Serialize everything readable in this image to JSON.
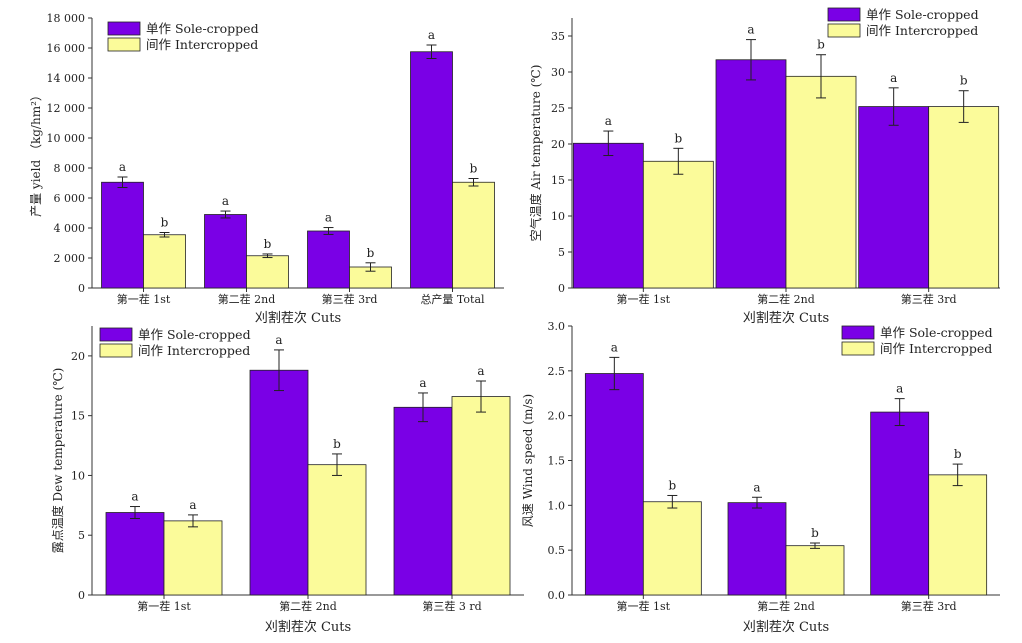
{
  "colors": {
    "sole": "#7a00e6",
    "inter": "#fbfb9a",
    "axis": "#333333",
    "text": "#222222"
  },
  "chart_data": [
    {
      "id": "yield",
      "type": "bar",
      "categories": [
        "第一茬 1st",
        "第二茬 2nd",
        "第三茬 3rd",
        "总产量 Total"
      ],
      "xlabel": "刈割茬次 Cuts",
      "ylabel": "产量 yield （kg/hm²）",
      "ylim": [
        0,
        18000
      ],
      "yticks": [
        0,
        2000,
        4000,
        6000,
        8000,
        10000,
        12000,
        14000,
        16000,
        18000
      ],
      "ytick_labels": [
        "0",
        "2 000",
        "4 000",
        "6 000",
        "8 000",
        "10 000",
        "12 000",
        "14 000",
        "16 000",
        "18 000"
      ],
      "legend": "top-left",
      "series": [
        {
          "name": "单作 Sole-cropped",
          "values": [
            7050,
            4900,
            3800,
            15750
          ],
          "errors": [
            350,
            230,
            230,
            450
          ],
          "sig": [
            "a",
            "a",
            "a",
            "a"
          ]
        },
        {
          "name": "间作 Intercropped",
          "values": [
            3550,
            2150,
            1400,
            7050
          ],
          "errors": [
            150,
            120,
            280,
            250
          ],
          "sig": [
            "b",
            "b",
            "b",
            "b"
          ]
        }
      ]
    },
    {
      "id": "air",
      "type": "bar",
      "categories": [
        "第一茬 1st",
        "第二茬 2nd",
        "第三茬 3rd"
      ],
      "xlabel": "刈割茬次  Cuts",
      "ylabel": "空气温度   Air temperature (℃)",
      "ylim": [
        0,
        37.5
      ],
      "yticks": [
        0,
        5,
        10,
        15,
        20,
        25,
        30,
        35
      ],
      "ytick_labels": [
        "0",
        "5",
        "10",
        "15",
        "20",
        "25",
        "30",
        "35"
      ],
      "legend": "top-right",
      "series": [
        {
          "name": "单作 Sole-cropped",
          "values": [
            20.1,
            31.7,
            25.2
          ],
          "errors": [
            1.7,
            2.8,
            2.6
          ],
          "sig": [
            "a",
            "a",
            "a"
          ]
        },
        {
          "name": "间作 Intercropped",
          "values": [
            17.6,
            29.4,
            25.2
          ],
          "errors": [
            1.8,
            3.0,
            2.2
          ],
          "sig": [
            "b",
            "b",
            "b"
          ]
        }
      ]
    },
    {
      "id": "dew",
      "type": "bar",
      "categories": [
        "第一茬 1st",
        "第二茬 2nd",
        "第三茬 3 rd"
      ],
      "xlabel": "刈割茬次  Cuts",
      "ylabel": "露点温度  Dew temperature (℃)",
      "ylim": [
        0,
        22.5
      ],
      "yticks": [
        0,
        5,
        10,
        15,
        20
      ],
      "ytick_labels": [
        "0",
        "5",
        "10",
        "15",
        "20"
      ],
      "legend": "top-left",
      "series": [
        {
          "name": "单作 Sole-cropped",
          "values": [
            6.9,
            18.8,
            15.7
          ],
          "errors": [
            0.5,
            1.7,
            1.2
          ],
          "sig": [
            "a",
            "a",
            "a"
          ]
        },
        {
          "name": "间作 Intercropped",
          "values": [
            6.2,
            10.9,
            16.6
          ],
          "errors": [
            0.5,
            0.9,
            1.3
          ],
          "sig": [
            "a",
            "b",
            "a"
          ]
        }
      ]
    },
    {
      "id": "wind",
      "type": "bar",
      "categories": [
        "第一茬 1st",
        "第二茬 2nd",
        "第三茬 3rd"
      ],
      "xlabel": "刈割茬次  Cuts",
      "ylabel": "风速   Wind speed (m/s)",
      "ylim": [
        0,
        3.0
      ],
      "yticks": [
        0,
        0.5,
        1.0,
        1.5,
        2.0,
        2.5,
        3.0
      ],
      "ytick_labels": [
        "0.0",
        "0.5",
        "1.0",
        "1.5",
        "2.0",
        "2.5",
        "3.0"
      ],
      "legend": "top-right",
      "series": [
        {
          "name": "单作 Sole-cropped",
          "values": [
            2.47,
            1.03,
            2.04
          ],
          "errors": [
            0.18,
            0.06,
            0.15
          ],
          "sig": [
            "a",
            "a",
            "a"
          ]
        },
        {
          "name": "间作 Intercropped",
          "values": [
            1.04,
            0.55,
            1.34
          ],
          "errors": [
            0.07,
            0.03,
            0.12
          ],
          "sig": [
            "b",
            "b",
            "b"
          ]
        }
      ]
    }
  ]
}
